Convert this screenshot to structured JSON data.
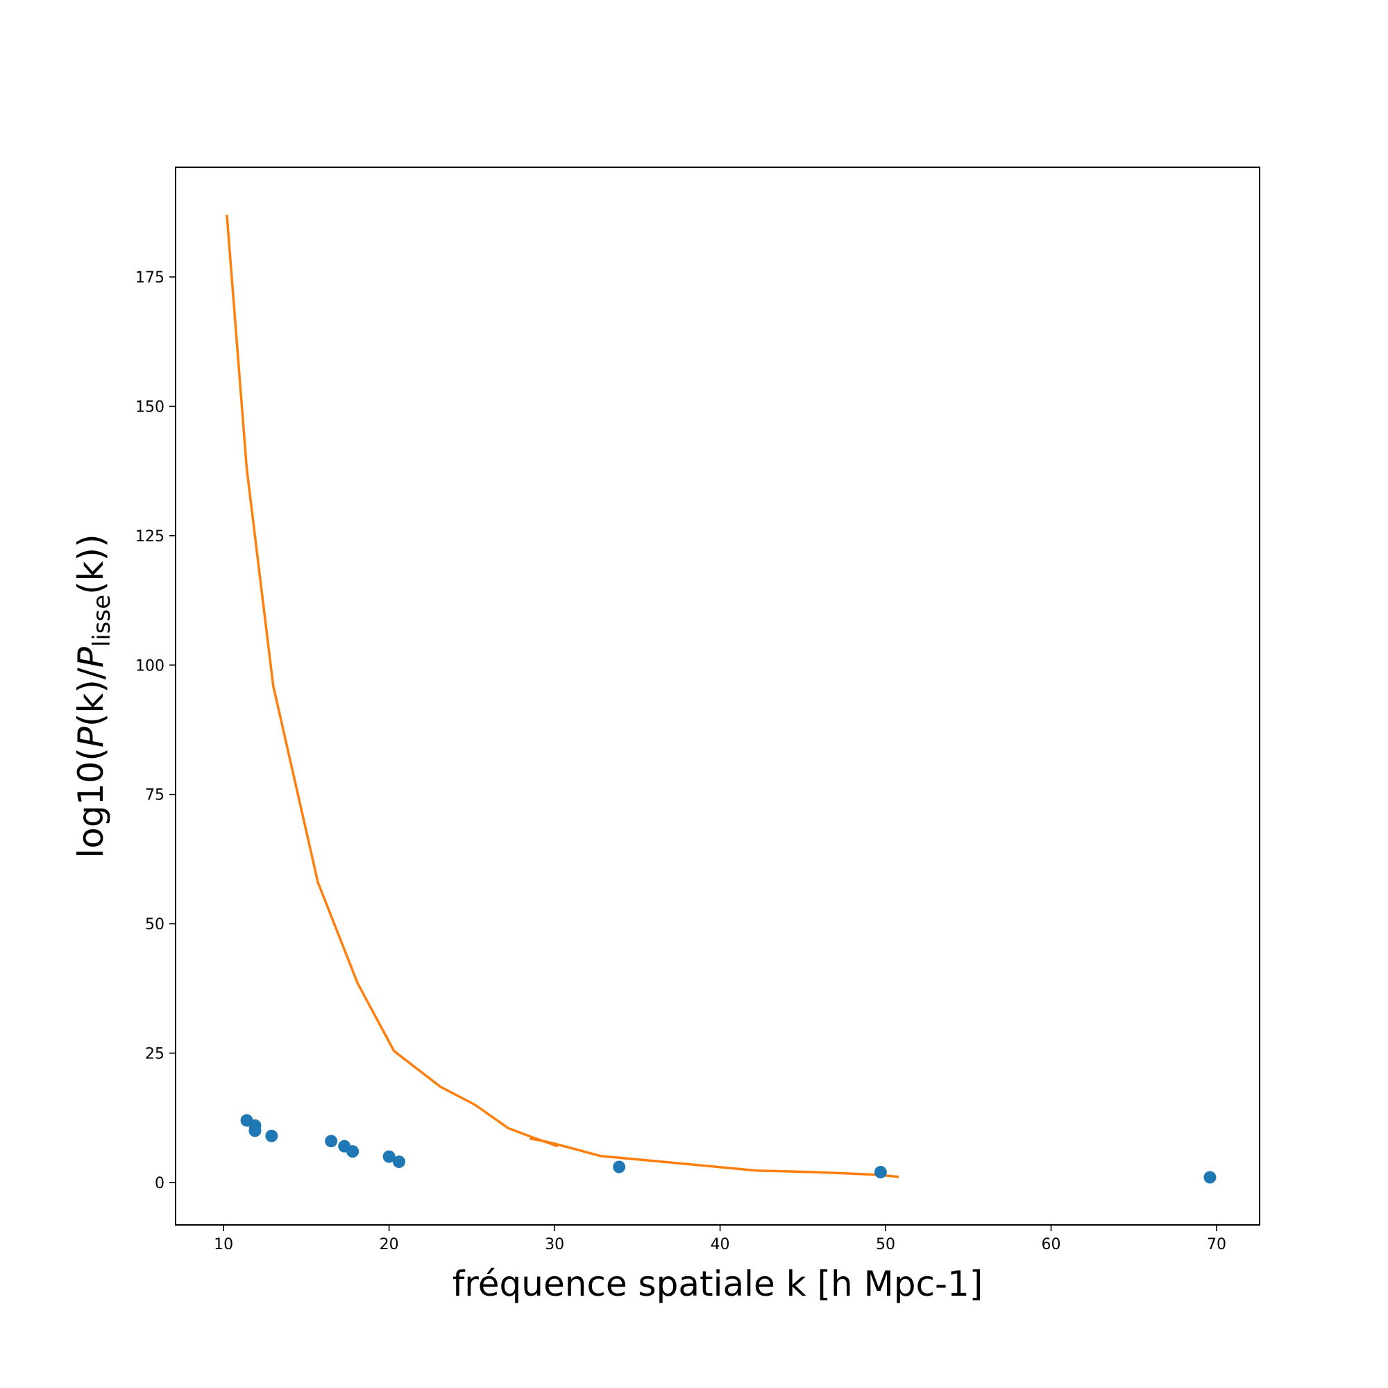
{
  "chart_data": {
    "type": "scatter",
    "title": "",
    "xlabel": "fréquence spatiale k [h Mpc-1]",
    "ylabel": {
      "prefix": "log10(",
      "num": "P",
      "num_arg": "(k)/",
      "den": "P",
      "den_sub": "lisse",
      "den_arg": "(k))"
    },
    "xlim": [
      7.1,
      72.6
    ],
    "ylim": [
      -8.2,
      196.2
    ],
    "xticks": [
      10,
      20,
      30,
      40,
      50,
      60,
      70
    ],
    "yticks": [
      0,
      25,
      50,
      75,
      100,
      125,
      150,
      175
    ],
    "grid": false,
    "legend": "none",
    "series": [
      {
        "kind": "scatter",
        "color": "#1f77b4",
        "x": [
          11.4,
          11.9,
          11.9,
          12.9,
          16.5,
          17.3,
          17.8,
          20.0,
          20.6,
          33.9,
          49.7,
          69.6
        ],
        "y": [
          12,
          11,
          10,
          9,
          8,
          7,
          6,
          5,
          4,
          3,
          2,
          1
        ]
      },
      {
        "kind": "line",
        "color": "#ff7f0e",
        "x": [
          10.2,
          11.4,
          13.0,
          15.7,
          18.1,
          20.3,
          23.1,
          25.2,
          27.2,
          28.6,
          30.2
        ],
        "y": [
          187.0,
          138.0,
          96.0,
          58.0,
          38.5,
          25.4,
          18.5,
          15.0,
          10.5,
          8.8,
          7.0
        ]
      },
      {
        "kind": "line",
        "color": "#ff7f0e",
        "x": [
          28.5,
          29.2,
          30.0,
          32.8,
          36.2,
          42.2,
          45.7,
          49.5,
          50.8
        ],
        "y": [
          8.5,
          8.1,
          7.5,
          5.1,
          4.1,
          2.3,
          2.0,
          1.5,
          1.1
        ]
      }
    ]
  }
}
